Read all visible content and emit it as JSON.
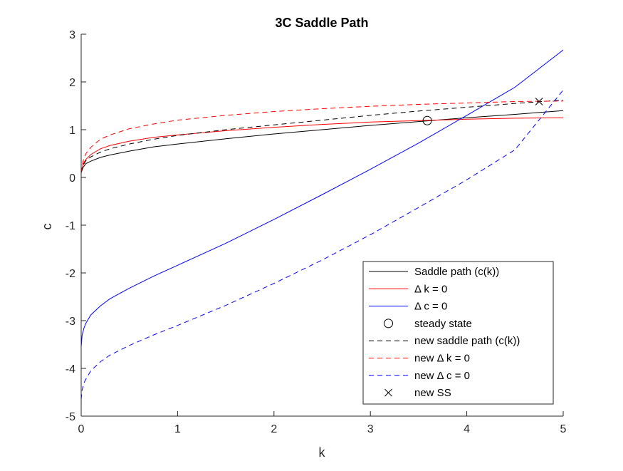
{
  "chart_data": {
    "type": "line",
    "title": "3C Saddle Path",
    "xlabel": "k",
    "ylabel": "c",
    "xlim": [
      0,
      5
    ],
    "ylim": [
      -5,
      3
    ],
    "xticks": [
      0,
      1,
      2,
      3,
      4,
      5
    ],
    "yticks": [
      -5,
      -4,
      -3,
      -2,
      -1,
      0,
      1,
      2,
      3
    ],
    "grid": false,
    "legend_position": "bottom-right",
    "series": [
      {
        "name": "Saddle path (c(k))",
        "color": "#000000",
        "style": "solid",
        "marker": "none",
        "x": [
          0.0,
          0.02,
          0.05,
          0.1,
          0.2,
          0.3,
          0.5,
          0.75,
          1.0,
          1.5,
          2.0,
          2.5,
          3.0,
          3.5,
          4.0,
          4.5,
          5.0
        ],
        "y": [
          0.1,
          0.21,
          0.29,
          0.34,
          0.42,
          0.47,
          0.55,
          0.64,
          0.7,
          0.81,
          0.91,
          1.0,
          1.09,
          1.17,
          1.25,
          1.32,
          1.4
        ]
      },
      {
        "name": "Δ k = 0",
        "color": "#ff0000",
        "style": "solid",
        "marker": "none",
        "x": [
          0.0,
          0.02,
          0.05,
          0.1,
          0.2,
          0.3,
          0.5,
          0.75,
          1.0,
          1.5,
          2.0,
          2.5,
          3.0,
          3.5,
          4.0,
          4.5,
          5.0
        ],
        "y": [
          0.1,
          0.28,
          0.38,
          0.48,
          0.6,
          0.67,
          0.76,
          0.84,
          0.89,
          0.98,
          1.05,
          1.11,
          1.16,
          1.19,
          1.22,
          1.24,
          1.25
        ]
      },
      {
        "name": "Δ c = 0",
        "color": "#0000ff",
        "style": "solid",
        "marker": "none",
        "x": [
          0.0,
          0.01,
          0.03,
          0.05,
          0.1,
          0.2,
          0.3,
          0.5,
          0.75,
          1.0,
          1.5,
          2.0,
          2.5,
          3.0,
          3.5,
          4.0,
          4.5,
          5.0
        ],
        "y": [
          -3.55,
          -3.3,
          -3.15,
          -3.05,
          -2.88,
          -2.69,
          -2.54,
          -2.32,
          -2.07,
          -1.84,
          -1.38,
          -0.88,
          -0.36,
          0.17,
          0.72,
          1.3,
          1.89,
          2.67
        ]
      },
      {
        "name": "steady state",
        "color": "#000000",
        "style": "none",
        "marker": "circle",
        "x": [
          3.59
        ],
        "y": [
          1.19
        ]
      },
      {
        "name": "new saddle path (c(k))",
        "color": "#000000",
        "style": "dashed",
        "marker": "none",
        "x": [
          0.0,
          0.02,
          0.05,
          0.1,
          0.2,
          0.3,
          0.5,
          0.75,
          1.0,
          1.5,
          2.0,
          2.5,
          3.0,
          3.5,
          4.0,
          4.5,
          5.0
        ],
        "y": [
          0.1,
          0.26,
          0.35,
          0.43,
          0.53,
          0.6,
          0.7,
          0.8,
          0.88,
          1.0,
          1.1,
          1.2,
          1.3,
          1.39,
          1.47,
          1.55,
          1.62
        ]
      },
      {
        "name": "new Δ k = 0",
        "color": "#ff0000",
        "style": "dashed",
        "marker": "none",
        "x": [
          0.0,
          0.02,
          0.05,
          0.1,
          0.2,
          0.3,
          0.5,
          0.75,
          1.0,
          1.5,
          2.0,
          2.5,
          3.0,
          3.5,
          4.0,
          4.5,
          5.0
        ],
        "y": [
          0.1,
          0.35,
          0.5,
          0.63,
          0.8,
          0.89,
          1.02,
          1.12,
          1.2,
          1.3,
          1.38,
          1.44,
          1.49,
          1.53,
          1.56,
          1.59,
          1.6
        ]
      },
      {
        "name": "new Δ c = 0",
        "color": "#0000ff",
        "style": "dashed",
        "marker": "none",
        "x": [
          0.0,
          0.01,
          0.03,
          0.05,
          0.1,
          0.2,
          0.3,
          0.5,
          0.75,
          1.0,
          1.5,
          2.0,
          2.5,
          3.0,
          3.5,
          4.0,
          4.5,
          5.0
        ],
        "y": [
          -4.65,
          -4.45,
          -4.3,
          -4.22,
          -4.05,
          -3.86,
          -3.72,
          -3.52,
          -3.3,
          -3.1,
          -2.68,
          -2.22,
          -1.73,
          -1.2,
          -0.63,
          -0.05,
          0.58,
          1.83
        ]
      },
      {
        "name": "new SS",
        "color": "#000000",
        "style": "none",
        "marker": "x",
        "x": [
          4.75
        ],
        "y": [
          1.59
        ]
      }
    ]
  }
}
